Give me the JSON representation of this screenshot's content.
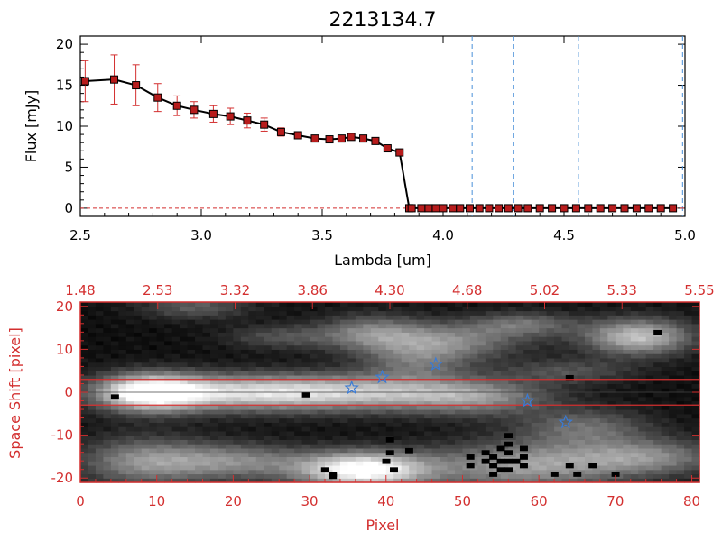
{
  "colors": {
    "accent_red": "#d32f2f",
    "marker_red": "#b71c1c",
    "dashed_blue": "#4a90d9",
    "star_blue": "#3a7bd5",
    "axis_black": "#000000"
  },
  "chart_data": [
    {
      "type": "line",
      "title": "2213134.7",
      "xlabel": "Lambda [um]",
      "ylabel": "Flux [mJy]",
      "xlim": [
        2.5,
        5.0
      ],
      "ylim": [
        -1,
        21
      ],
      "xticks": [
        "2.5",
        "3.0",
        "3.5",
        "4.0",
        "4.5",
        "5.0"
      ],
      "yticks": [
        "0",
        "5",
        "10",
        "15",
        "20"
      ],
      "series": [
        {
          "x": [
            2.52,
            2.64,
            2.73,
            2.82,
            2.9,
            2.97,
            3.05,
            3.12,
            3.19,
            3.26,
            3.33,
            3.4,
            3.47,
            3.53,
            3.58,
            3.62,
            3.67,
            3.72,
            3.77,
            3.82,
            3.86,
            3.87,
            3.91,
            3.94,
            3.97,
            4.0,
            4.04,
            4.07,
            4.11,
            4.15,
            4.19,
            4.23,
            4.27,
            4.31,
            4.35,
            4.4,
            4.45,
            4.5,
            4.55,
            4.6,
            4.65,
            4.7,
            4.75,
            4.8,
            4.85,
            4.9,
            4.95
          ],
          "y": [
            15.5,
            15.7,
            15.0,
            13.5,
            12.5,
            12.0,
            11.5,
            11.2,
            10.7,
            10.2,
            9.3,
            8.9,
            8.5,
            8.4,
            8.5,
            8.7,
            8.5,
            8.2,
            7.3,
            6.8,
            0,
            0,
            0,
            0,
            0,
            0,
            0,
            0,
            0,
            0,
            0,
            0,
            0,
            0,
            0,
            0,
            0,
            0,
            0,
            0,
            0,
            0,
            0,
            0,
            0,
            0,
            0
          ],
          "err": [
            2.5,
            3.0,
            2.5,
            1.7,
            1.2,
            1.0,
            1.0,
            1.0,
            0.9,
            0.8,
            0.5,
            0.4,
            0.3,
            0.3,
            0.3,
            0.3,
            0.3,
            0.3,
            0.3,
            0.3,
            0,
            0,
            0,
            0,
            0,
            0,
            0,
            0,
            0,
            0,
            0,
            0,
            0,
            0,
            0,
            0,
            0,
            0,
            0,
            0,
            0,
            0,
            0,
            0,
            0,
            0,
            0
          ]
        }
      ],
      "vlines": [
        4.12,
        4.29,
        4.56,
        4.99
      ],
      "hline_dashed": 0
    },
    {
      "type": "heatmap",
      "xlabel": "Pixel",
      "ylabel": "Space Shift [pixel]",
      "xlim": [
        0,
        81
      ],
      "ylim": [
        -21,
        21
      ],
      "xticks": [
        "0",
        "10",
        "20",
        "30",
        "40",
        "50",
        "60",
        "70",
        "80"
      ],
      "yticks": [
        "-20",
        "-10",
        "0",
        "10",
        "20"
      ],
      "top_ticks": [
        "1.48",
        "2.53",
        "3.32",
        "3.86",
        "4.30",
        "4.68",
        "5.02",
        "5.33",
        "5.55"
      ],
      "hlines": [
        3,
        -3
      ],
      "blobs": [
        {
          "x": 9,
          "y": 0,
          "sx": 5,
          "sy": 3,
          "v": 1.0
        },
        {
          "x": 22,
          "y": 0,
          "sx": 9,
          "sy": 3,
          "v": 0.7
        },
        {
          "x": 38,
          "y": 0,
          "sx": 9,
          "sy": 3,
          "v": 0.55
        },
        {
          "x": 52,
          "y": -1,
          "sx": 7,
          "sy": 3,
          "v": 0.45
        },
        {
          "x": 37,
          "y": -18,
          "sx": 6,
          "sy": 3,
          "v": 1.0
        },
        {
          "x": 20,
          "y": -16,
          "sx": 7,
          "sy": 3,
          "v": 0.45
        },
        {
          "x": 8,
          "y": -16,
          "sx": 6,
          "sy": 4,
          "v": 0.45
        },
        {
          "x": 58,
          "y": -17,
          "sx": 9,
          "sy": 4,
          "v": 0.55
        },
        {
          "x": 74,
          "y": -15,
          "sx": 7,
          "sy": 3,
          "v": 0.45
        },
        {
          "x": 66,
          "y": -8,
          "sx": 6,
          "sy": 3,
          "v": 0.35
        },
        {
          "x": 73,
          "y": 13,
          "sx": 5,
          "sy": 3,
          "v": 0.7
        },
        {
          "x": 38,
          "y": 14,
          "sx": 5,
          "sy": 3,
          "v": 0.4
        },
        {
          "x": 48,
          "y": 12,
          "sx": 7,
          "sy": 3,
          "v": 0.45
        },
        {
          "x": 58,
          "y": 16,
          "sx": 5,
          "sy": 2,
          "v": 0.35
        },
        {
          "x": 15,
          "y": 20,
          "sx": 5,
          "sy": 2,
          "v": 0.3
        },
        {
          "x": 26,
          "y": 13,
          "sx": 5,
          "sy": 2,
          "v": 0.25
        },
        {
          "x": 44,
          "y": 7,
          "sx": 5,
          "sy": 3,
          "v": 0.3
        },
        {
          "x": 64,
          "y": 5,
          "sx": 6,
          "sy": 2,
          "v": 0.25
        }
      ],
      "black_pixels": [
        [
          4.5,
          -1
        ],
        [
          29.5,
          -0.5
        ],
        [
          64,
          3.5
        ],
        [
          75.5,
          14
        ],
        [
          32,
          -18
        ],
        [
          33,
          -19
        ],
        [
          33,
          -19.5
        ],
        [
          40,
          -16
        ],
        [
          41,
          -18
        ],
        [
          40.5,
          -11
        ],
        [
          43,
          -13.5
        ],
        [
          40.5,
          -14
        ],
        [
          51,
          -15
        ],
        [
          51,
          -17
        ],
        [
          53,
          -14
        ],
        [
          53,
          -16
        ],
        [
          54,
          -15
        ],
        [
          54,
          -17
        ],
        [
          54,
          -19
        ],
        [
          55,
          -13
        ],
        [
          55,
          -16
        ],
        [
          55,
          -18
        ],
        [
          56,
          -10
        ],
        [
          56,
          -12
        ],
        [
          56,
          -14
        ],
        [
          56,
          -16
        ],
        [
          56,
          -18
        ],
        [
          57,
          -16
        ],
        [
          58,
          -13
        ],
        [
          58,
          -15
        ],
        [
          58,
          -17
        ],
        [
          62,
          -19
        ],
        [
          64,
          -17
        ],
        [
          65,
          -19
        ],
        [
          67,
          -17
        ],
        [
          70,
          -19
        ]
      ],
      "stars": [
        [
          35.5,
          1
        ],
        [
          39.5,
          3.5
        ],
        [
          46.5,
          6.5
        ],
        [
          58.5,
          -2
        ],
        [
          63.5,
          -7
        ]
      ]
    }
  ]
}
